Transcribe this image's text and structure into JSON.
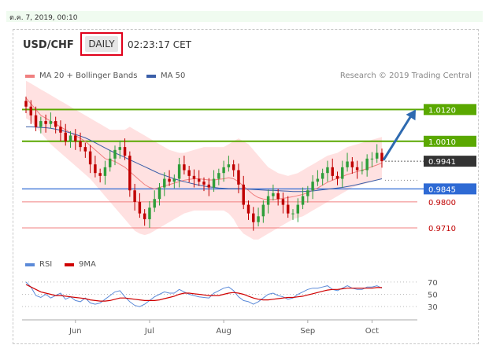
{
  "header": {
    "date": "ต.ค. 7, 2019, 00:10",
    "symbol": "USD/CHF",
    "period": "DAILY",
    "time": "02:23:17 CET",
    "credit": "Research © 2019 Trading Central"
  },
  "legend": {
    "ma20": "MA 20 + Bollinger Bands",
    "ma50": "MA 50",
    "rsi": "RSI",
    "ma9": "9MA"
  },
  "colors": {
    "bull": "#2e9e3a",
    "bear": "#c00000",
    "green_level": "#5aa800",
    "blue_level": "#2e6ad4",
    "red_level": "#f08080",
    "ma20": "#f08080",
    "ma50": "#3a5ea8",
    "band": "#ffd7d7",
    "rsi": "#5b8ad8",
    "ma9": "#d00000"
  },
  "chart_data": [
    {
      "type": "candlestick",
      "x_ticks": [
        "Jun",
        "Jul",
        "Aug",
        "Sep",
        "Oct"
      ],
      "ylim": [
        0.965,
        1.02
      ],
      "levels": [
        {
          "value": 1.012,
          "label": "1.0120",
          "style": "green"
        },
        {
          "value": 1.001,
          "label": "1.0010",
          "style": "green"
        },
        {
          "value": 0.9941,
          "label": "0.9941",
          "style": "current"
        },
        {
          "value": 0.9845,
          "label": "0.9845",
          "style": "blue"
        },
        {
          "value": 0.98,
          "label": "0.9800",
          "style": "red"
        },
        {
          "value": 0.971,
          "label": "0.9710",
          "style": "red"
        }
      ],
      "close": [
        1.013,
        1.01,
        1.006,
        1.008,
        1.007,
        1.008,
        1.006,
        1.004,
        1.001,
        1.003,
        1.001,
        0.999,
        0.9975,
        0.993,
        0.99,
        0.989,
        0.992,
        0.995,
        0.998,
        0.999,
        0.996,
        0.984,
        0.98,
        0.976,
        0.974,
        0.978,
        0.981,
        0.985,
        0.988,
        0.987,
        0.988,
        0.993,
        0.991,
        0.989,
        0.988,
        0.987,
        0.986,
        0.985,
        0.988,
        0.99,
        0.992,
        0.993,
        0.991,
        0.986,
        0.979,
        0.976,
        0.973,
        0.975,
        0.979,
        0.982,
        0.983,
        0.981,
        0.979,
        0.976,
        0.976,
        0.979,
        0.982,
        0.984,
        0.987,
        0.988,
        0.99,
        0.992,
        0.989,
        0.988,
        0.992,
        0.994,
        0.992,
        0.991,
        0.991,
        0.995,
        0.995,
        0.997,
        0.9941
      ],
      "high_offset": 0.003,
      "low_offset": 0.003,
      "ma20": [
        1.016,
        1.014,
        1.012,
        1.01,
        1.009,
        1.008,
        1.007,
        1.006,
        1.005,
        1.004,
        1.003,
        1.002,
        1.001,
        0.9995,
        0.998,
        0.9965,
        0.995,
        0.9945,
        0.994,
        0.993,
        0.992,
        0.9905,
        0.989,
        0.9875,
        0.986,
        0.985,
        0.9845,
        0.985,
        0.9855,
        0.986,
        0.9865,
        0.987,
        0.9875,
        0.9878,
        0.988,
        0.988,
        0.9878,
        0.9876,
        0.9876,
        0.9878,
        0.988,
        0.9884,
        0.988,
        0.987,
        0.9855,
        0.984,
        0.9825,
        0.9815,
        0.981,
        0.9808,
        0.9808,
        0.981,
        0.9812,
        0.9815,
        0.9818,
        0.9822,
        0.9826,
        0.9832,
        0.984,
        0.9848,
        0.9858,
        0.9868,
        0.9875,
        0.9882,
        0.9888,
        0.9895,
        0.99,
        0.9905,
        0.991,
        0.9915,
        0.9922,
        0.9928,
        0.9935
      ],
      "ma50": [
        1.006,
        1.006,
        1.0059,
        1.0058,
        1.0057,
        1.0055,
        1.0052,
        1.0048,
        1.0044,
        1.0039,
        1.0034,
        1.0028,
        1.0022,
        1.0014,
        1.0005,
        0.9996,
        0.9987,
        0.9978,
        0.997,
        0.9962,
        0.9954,
        0.9946,
        0.9938,
        0.993,
        0.9922,
        0.9914,
        0.9906,
        0.9898,
        0.9892,
        0.9886,
        0.988,
        0.9875,
        0.987,
        0.9866,
        0.9862,
        0.9858,
        0.9855,
        0.9852,
        0.985,
        0.9848,
        0.9847,
        0.9846,
        0.9846,
        0.9846,
        0.9845,
        0.9844,
        0.9843,
        0.9842,
        0.9841,
        0.984,
        0.984,
        0.9839,
        0.9838,
        0.9837,
        0.9836,
        0.9836,
        0.9836,
        0.9837,
        0.9838,
        0.984,
        0.9842,
        0.9844,
        0.9846,
        0.9848,
        0.985,
        0.9853,
        0.9856,
        0.986,
        0.9864,
        0.9868,
        0.9872,
        0.9876,
        0.988
      ],
      "band_upper": [
        1.022,
        1.021,
        1.02,
        1.019,
        1.018,
        1.017,
        1.016,
        1.015,
        1.014,
        1.013,
        1.012,
        1.011,
        1.01,
        1.009,
        1.008,
        1.007,
        1.006,
        1.005,
        1.005,
        1.005,
        1.005,
        1.006,
        1.005,
        1.004,
        1.003,
        1.002,
        1.001,
        1.0,
        0.999,
        0.998,
        0.9975,
        0.997,
        0.997,
        0.9975,
        0.998,
        0.9985,
        0.999,
        0.999,
        0.999,
        0.999,
        0.999,
        1.0,
        1.001,
        1.002,
        1.001,
        1.0,
        0.998,
        0.996,
        0.994,
        0.992,
        0.991,
        0.99,
        0.9895,
        0.989,
        0.9895,
        0.99,
        0.991,
        0.992,
        0.993,
        0.994,
        0.995,
        0.996,
        0.9965,
        0.997,
        0.998,
        0.999,
        0.9995,
        1.0,
        1.0005,
        1.001,
        1.0015,
        1.002,
        1.0025
      ],
      "band_lower": [
        1.009,
        1.008,
        1.006,
        1.004,
        1.002,
        1.0,
        0.9985,
        0.997,
        0.9955,
        0.994,
        0.9925,
        0.991,
        0.9895,
        0.988,
        0.986,
        0.984,
        0.982,
        0.98,
        0.978,
        0.976,
        0.974,
        0.972,
        0.97,
        0.969,
        0.9685,
        0.969,
        0.97,
        0.971,
        0.972,
        0.973,
        0.974,
        0.975,
        0.976,
        0.9765,
        0.977,
        0.977,
        0.977,
        0.977,
        0.977,
        0.977,
        0.977,
        0.976,
        0.974,
        0.971,
        0.969,
        0.968,
        0.967,
        0.967,
        0.968,
        0.969,
        0.97,
        0.971,
        0.972,
        0.973,
        0.974,
        0.9745,
        0.975,
        0.976,
        0.977,
        0.978,
        0.979,
        0.98,
        0.981,
        0.982,
        0.983,
        0.984,
        0.985,
        0.9855,
        0.986,
        0.9865,
        0.987,
        0.9875,
        0.988
      ]
    },
    {
      "type": "line",
      "name": "RSI",
      "y_ticks": [
        70,
        50,
        30
      ],
      "ylim": [
        20,
        75
      ],
      "rsi": [
        70,
        62,
        48,
        45,
        50,
        44,
        48,
        52,
        42,
        46,
        40,
        38,
        44,
        36,
        34,
        36,
        42,
        48,
        54,
        56,
        46,
        38,
        32,
        30,
        34,
        40,
        46,
        50,
        54,
        52,
        52,
        58,
        54,
        50,
        48,
        46,
        45,
        44,
        52,
        56,
        60,
        62,
        56,
        46,
        40,
        38,
        34,
        38,
        44,
        50,
        52,
        48,
        46,
        42,
        44,
        50,
        54,
        58,
        60,
        60,
        62,
        64,
        58,
        56,
        60,
        64,
        60,
        58,
        58,
        62,
        62,
        64,
        60
      ],
      "ma9": [
        66,
        62,
        58,
        54,
        52,
        50,
        48,
        48,
        47,
        46,
        45,
        44,
        43,
        41,
        40,
        39,
        39,
        40,
        42,
        44,
        44,
        43,
        42,
        41,
        40,
        40,
        40,
        41,
        43,
        45,
        47,
        50,
        52,
        52,
        51,
        50,
        49,
        48,
        48,
        48,
        50,
        52,
        53,
        52,
        50,
        47,
        44,
        42,
        41,
        41,
        42,
        43,
        44,
        45,
        45,
        46,
        47,
        49,
        51,
        53,
        55,
        57,
        58,
        58,
        59,
        60,
        60,
        60,
        60,
        60,
        60,
        61,
        61
      ]
    }
  ]
}
